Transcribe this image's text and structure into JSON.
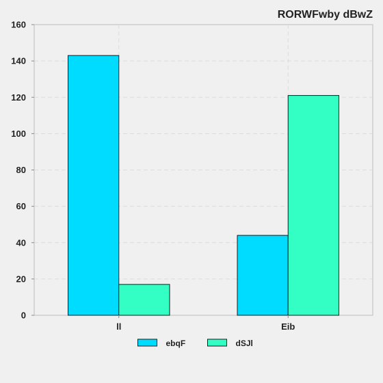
{
  "chart_data": {
    "type": "bar",
    "title": "RORWFwby dBwZ",
    "xlabel": "",
    "ylabel": "",
    "categories": [
      "ll",
      "Eib"
    ],
    "series": [
      {
        "name": "ebqF",
        "color": "#00dcff",
        "values": [
          143,
          44
        ]
      },
      {
        "name": "dSJl",
        "color": "#33ffc4",
        "values": [
          17,
          121
        ]
      }
    ],
    "ylim": [
      0,
      160
    ],
    "yticks": [
      0,
      20,
      40,
      60,
      80,
      100,
      120,
      140,
      160
    ],
    "grid": true,
    "legend_position": "bottom-center"
  }
}
